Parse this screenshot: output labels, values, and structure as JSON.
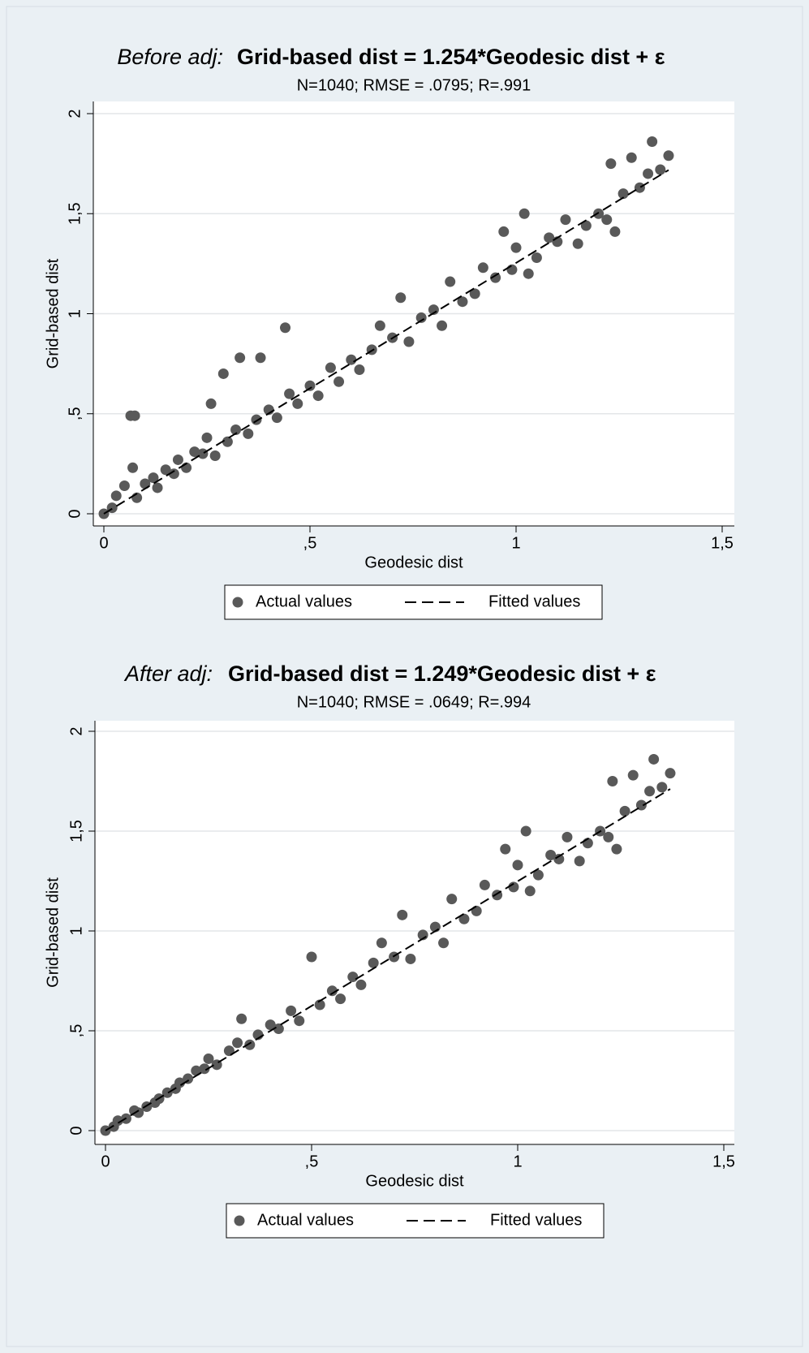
{
  "chart_data": [
    {
      "type": "scatter",
      "title_prefix": "Before adj:",
      "title": "Grid-based dist = 1.254*Geodesic dist + ε",
      "subtitle": "N=1040; RMSE = .0795; R=.991",
      "xlabel": "Geodesic dist",
      "ylabel": "Grid-based dist",
      "xlim": [
        0,
        1.5
      ],
      "ylim": [
        0,
        2
      ],
      "xticks": [
        0,
        {
          "value": 0.5,
          "label": ",5"
        },
        1,
        {
          "value": 1.5,
          "label": "1,5"
        }
      ],
      "yticks": [
        0,
        {
          "value": 0.5,
          "label": ",5"
        },
        1,
        {
          "value": 1.5,
          "label": "1,5"
        },
        2
      ],
      "grid": true,
      "legend": "bottom",
      "series": [
        {
          "name": "Actual values",
          "color": "#595959",
          "kind": "scatter",
          "x": [
            0,
            0.02,
            0.03,
            0.05,
            0.07,
            0.08,
            0.1,
            0.12,
            0.13,
            0.15,
            0.17,
            0.18,
            0.2,
            0.22,
            0.24,
            0.25,
            0.26,
            0.27,
            0.29,
            0.3,
            0.32,
            0.33,
            0.35,
            0.37,
            0.38,
            0.4,
            0.42,
            0.44,
            0.45,
            0.47,
            0.5,
            0.52,
            0.55,
            0.57,
            0.6,
            0.62,
            0.65,
            0.67,
            0.7,
            0.72,
            0.74,
            0.77,
            0.8,
            0.82,
            0.84,
            0.87,
            0.9,
            0.92,
            0.95,
            0.97,
            0.99,
            1.0,
            1.02,
            1.03,
            1.05,
            1.08,
            1.1,
            1.12,
            1.15,
            1.17,
            1.2,
            1.22,
            1.23,
            1.24,
            1.26,
            1.28,
            1.3,
            1.32,
            1.33,
            1.35,
            1.37,
            0.065,
            0.075
          ],
          "values": [
            0,
            0.03,
            0.09,
            0.14,
            0.23,
            0.08,
            0.15,
            0.18,
            0.13,
            0.22,
            0.2,
            0.27,
            0.23,
            0.31,
            0.3,
            0.38,
            0.55,
            0.29,
            0.7,
            0.36,
            0.42,
            0.78,
            0.4,
            0.47,
            0.78,
            0.52,
            0.48,
            0.93,
            0.6,
            0.55,
            0.64,
            0.59,
            0.73,
            0.66,
            0.77,
            0.72,
            0.82,
            0.94,
            0.88,
            1.08,
            0.86,
            0.98,
            1.02,
            0.94,
            1.16,
            1.06,
            1.1,
            1.23,
            1.18,
            1.41,
            1.22,
            1.33,
            1.5,
            1.2,
            1.28,
            1.38,
            1.36,
            1.47,
            1.35,
            1.44,
            1.5,
            1.47,
            1.75,
            1.41,
            1.6,
            1.78,
            1.63,
            1.7,
            1.86,
            1.72,
            1.79,
            0.49,
            0.49
          ]
        },
        {
          "name": "Fitted values",
          "color": "#000000",
          "kind": "line",
          "x": [
            0,
            1.37
          ],
          "values": [
            0,
            1.718
          ]
        }
      ]
    },
    {
      "type": "scatter",
      "title_prefix": "After adj:",
      "title": "Grid-based dist = 1.249*Geodesic dist + ε",
      "subtitle": "N=1040; RMSE = .0649; R=.994",
      "xlabel": "Geodesic dist",
      "ylabel": "Grid-based dist",
      "xlim": [
        0,
        1.5
      ],
      "ylim": [
        0,
        2
      ],
      "xticks": [
        0,
        {
          "value": 0.5,
          "label": ",5"
        },
        1,
        {
          "value": 1.5,
          "label": "1,5"
        }
      ],
      "yticks": [
        0,
        {
          "value": 0.5,
          "label": ",5"
        },
        1,
        {
          "value": 1.5,
          "label": "1,5"
        },
        2
      ],
      "grid": true,
      "legend": "bottom",
      "series": [
        {
          "name": "Actual values",
          "color": "#595959",
          "kind": "scatter",
          "x": [
            0,
            0.02,
            0.03,
            0.05,
            0.07,
            0.08,
            0.1,
            0.12,
            0.13,
            0.15,
            0.17,
            0.18,
            0.2,
            0.22,
            0.24,
            0.25,
            0.27,
            0.3,
            0.32,
            0.33,
            0.35,
            0.37,
            0.4,
            0.42,
            0.45,
            0.47,
            0.5,
            0.52,
            0.55,
            0.57,
            0.6,
            0.62,
            0.65,
            0.67,
            0.7,
            0.72,
            0.74,
            0.77,
            0.8,
            0.82,
            0.84,
            0.87,
            0.9,
            0.92,
            0.95,
            0.97,
            0.99,
            1.0,
            1.02,
            1.03,
            1.05,
            1.08,
            1.1,
            1.12,
            1.15,
            1.17,
            1.2,
            1.22,
            1.23,
            1.24,
            1.26,
            1.28,
            1.3,
            1.32,
            1.33,
            1.35,
            1.37
          ],
          "values": [
            0,
            0.02,
            0.05,
            0.06,
            0.1,
            0.09,
            0.12,
            0.14,
            0.16,
            0.19,
            0.21,
            0.24,
            0.26,
            0.3,
            0.31,
            0.36,
            0.33,
            0.4,
            0.44,
            0.56,
            0.43,
            0.48,
            0.53,
            0.51,
            0.6,
            0.55,
            0.87,
            0.63,
            0.7,
            0.66,
            0.77,
            0.73,
            0.84,
            0.94,
            0.87,
            1.08,
            0.86,
            0.98,
            1.02,
            0.94,
            1.16,
            1.06,
            1.1,
            1.23,
            1.18,
            1.41,
            1.22,
            1.33,
            1.5,
            1.2,
            1.28,
            1.38,
            1.36,
            1.47,
            1.35,
            1.44,
            1.5,
            1.47,
            1.75,
            1.41,
            1.6,
            1.78,
            1.63,
            1.7,
            1.86,
            1.72,
            1.79
          ]
        },
        {
          "name": "Fitted values",
          "color": "#000000",
          "kind": "line",
          "x": [
            0,
            1.37
          ],
          "values": [
            0,
            1.711
          ]
        }
      ]
    }
  ]
}
